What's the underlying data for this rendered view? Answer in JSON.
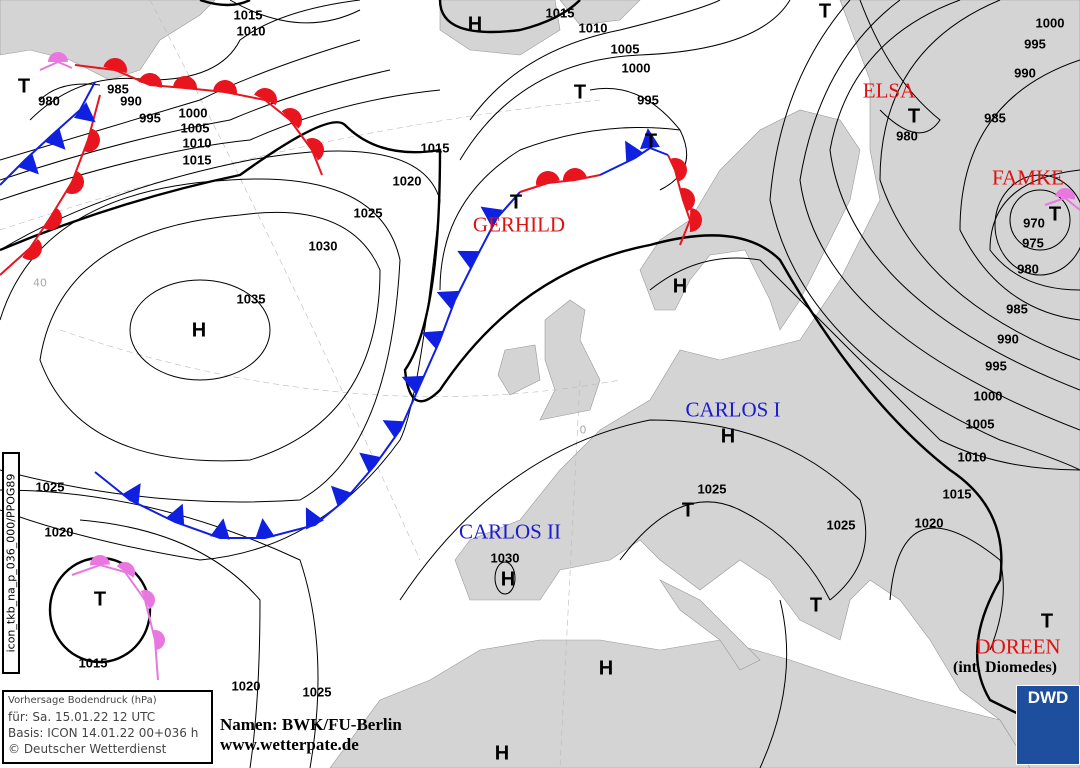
{
  "map": {
    "colors": {
      "land": "#d4d4d4",
      "sea": "#ffffff",
      "warm_front": "#e8141e",
      "cold_front": "#1020e0",
      "occlusion": "#e878e0",
      "name_red": "#e01010",
      "name_blue": "#1a1ad0"
    },
    "pressure_centers": [
      "H",
      "T",
      "T",
      "T",
      "T",
      "T",
      "T",
      "T",
      "H",
      "H",
      "H",
      "T",
      "H",
      "T",
      "T",
      "T",
      "H",
      "H"
    ],
    "isobar_labels": [
      "1015",
      "1010",
      "1015",
      "1010",
      "1000",
      "995",
      "990",
      "1005",
      "1000",
      "995",
      "980",
      "985",
      "990",
      "995",
      "1000",
      "1005",
      "1010",
      "1015",
      "1015",
      "1020",
      "1025",
      "1030",
      "1035",
      "985",
      "980",
      "970",
      "975",
      "980",
      "985",
      "990",
      "995",
      "1000",
      "1005",
      "1010",
      "1015",
      "1020",
      "1025",
      "1025",
      "1030",
      "1025",
      "1020",
      "1015",
      "1020",
      "1025"
    ],
    "names": {
      "elsa": "ELSA",
      "famke": "FAMKE",
      "gerhild": "GERHILD",
      "carlos1": "CARLOS I",
      "carlos2": "CARLOS II",
      "doreen": "DOREEN",
      "diomedes": "(int. Diomedes)"
    },
    "graticule_labels": [
      "40",
      "0"
    ]
  },
  "legend": {
    "title": "Vorhersage Bodendruck (hPa)",
    "valid": "für:  Sa. 15.01.22  12 UTC",
    "basis": "Basis: ICON  14.01.22 00+036 h",
    "copyright": "© Deutscher Wetterdienst"
  },
  "product_code": "icon_tkb_na_p_036_000/PPOG89",
  "credits": {
    "names": "Namen: BWK/FU-Berlin",
    "url": "www.wetterpate.de"
  },
  "logo": {
    "text": "DWD"
  }
}
